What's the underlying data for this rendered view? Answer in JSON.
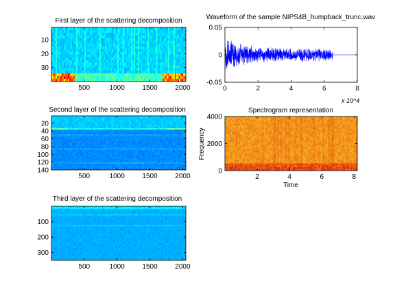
{
  "chart_data": [
    {
      "type": "heatmap",
      "title": "First layer of the scattering decomposition",
      "xlim": [
        1,
        2048
      ],
      "ylim": [
        1,
        40
      ],
      "x_ticks": [
        500,
        1000,
        1500,
        2000
      ],
      "y_ticks": [
        10,
        20,
        30
      ],
      "y_reversed": true,
      "colormap": "jet",
      "hot_rows_near_bottom": true,
      "hot_x_regions": [
        [
          1,
          350
        ],
        [
          1700,
          2048
        ]
      ]
    },
    {
      "type": "line",
      "title": "Waveform of the sample NIPS4B_humpback_trunc.wav",
      "xlim": [
        0,
        80000
      ],
      "ylim": [
        -0.05,
        0.05
      ],
      "x_ticks": [
        0,
        2,
        4,
        6,
        8
      ],
      "x_multiplier": "x 10^4",
      "y_ticks": [
        -0.05,
        0,
        0.05
      ],
      "signal_end": 65000,
      "envelope": [
        {
          "x": 0,
          "amp": 0.015
        },
        {
          "x": 1000,
          "amp": 0.04
        },
        {
          "x": 5000,
          "amp": 0.025
        },
        {
          "x": 20000,
          "amp": 0.016
        },
        {
          "x": 40000,
          "amp": 0.012
        },
        {
          "x": 55000,
          "amp": 0.014
        },
        {
          "x": 65000,
          "amp": 0.011
        }
      ],
      "color": "#0000ff"
    },
    {
      "type": "heatmap",
      "title": "Second layer of the scattering decomposition",
      "xlim": [
        1,
        2048
      ],
      "ylim": [
        1,
        140
      ],
      "x_ticks": [
        500,
        1000,
        1500,
        2000
      ],
      "y_ticks": [
        20,
        40,
        60,
        80,
        100,
        120,
        140
      ],
      "y_reversed": true,
      "colormap": "jet",
      "bright_band_rows": [
        1,
        36
      ]
    },
    {
      "type": "heatmap",
      "title": "Spectrogram representation",
      "xlabel": "Time",
      "ylabel": "Frequency",
      "xlim": [
        0,
        8.2
      ],
      "ylim": [
        0,
        4000
      ],
      "x_ticks": [
        2,
        4,
        6,
        8
      ],
      "y_ticks": [
        0,
        2000,
        4000
      ],
      "colormap": "hot-yellow"
    },
    {
      "type": "heatmap",
      "title": "Third layer of the scattering decomposition",
      "xlim": [
        1,
        2048
      ],
      "ylim": [
        1,
        350
      ],
      "x_ticks": [
        500,
        1000,
        1500,
        2000
      ],
      "y_ticks": [
        100,
        200,
        300
      ],
      "y_reversed": true,
      "colormap": "jet"
    }
  ]
}
